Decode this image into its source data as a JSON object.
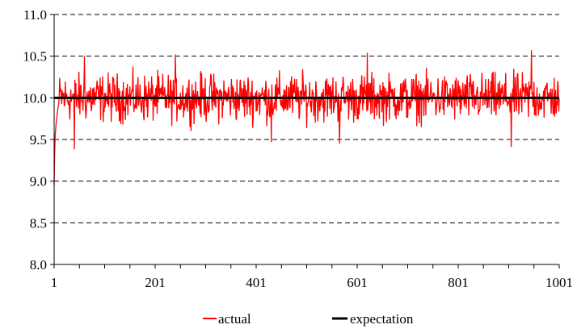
{
  "chart_data": {
    "type": "line",
    "title": "",
    "xlabel": "",
    "ylabel": "",
    "xlim": [
      1,
      1001
    ],
    "ylim": [
      8.0,
      11.0
    ],
    "x_ticks": [
      "1",
      "201",
      "401",
      "601",
      "801",
      "1001"
    ],
    "y_ticks": [
      "8.0",
      "8.5",
      "9.0",
      "9.5",
      "10.0",
      "10.5",
      "11.0"
    ],
    "grid": "horizontal dashed",
    "legend_position": "bottom",
    "series": [
      {
        "name": "actual",
        "color": "#ff0000",
        "x_range": [
          1,
          1001
        ],
        "n_points": 1001,
        "start_values": [
          8.95,
          9.33,
          9.55,
          9.62,
          9.7,
          9.75,
          9.8,
          9.85,
          9.9,
          9.92
        ],
        "steady_mean": 10.0,
        "steady_min": 9.38,
        "steady_max": 10.57
      },
      {
        "name": "expectation",
        "color": "#000000",
        "values": [
          10.0,
          10.0
        ],
        "x": [
          1,
          1001
        ]
      }
    ]
  }
}
